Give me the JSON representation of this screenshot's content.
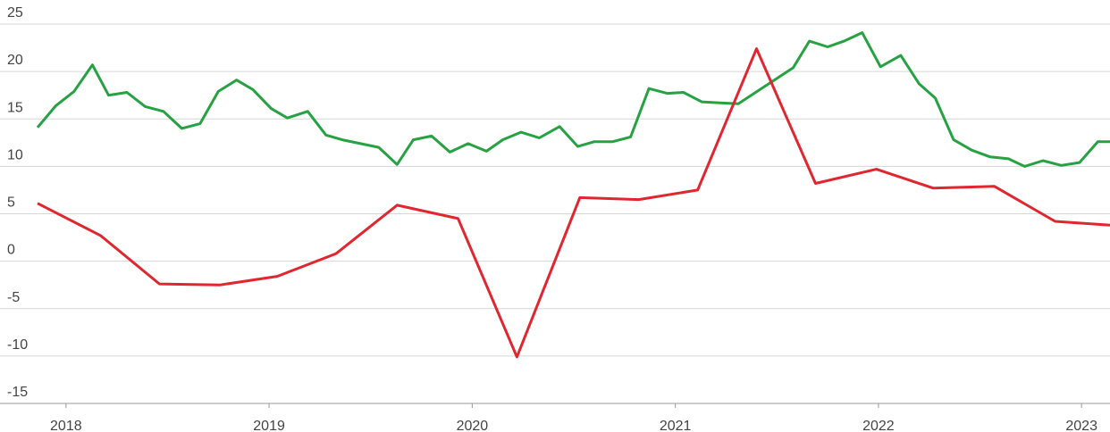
{
  "chart_data": {
    "type": "line",
    "xlim": [
      2017.86,
      2023.14
    ],
    "xticks": [
      2018,
      2019,
      2020,
      2021,
      2022,
      2023
    ],
    "ylim": [
      -15,
      25
    ],
    "yticks": [
      -15,
      -10,
      -5,
      0,
      5,
      10,
      15,
      20,
      25
    ],
    "grid": true,
    "series": [
      {
        "color": "#27a243",
        "x": [
          2017.86,
          2017.95,
          2018.04,
          2018.13,
          2018.21,
          2018.3,
          2018.39,
          2018.48,
          2018.57,
          2018.66,
          2018.75,
          2018.84,
          2018.92,
          2019.01,
          2019.09,
          2019.19,
          2019.28,
          2019.36,
          2019.45,
          2019.54,
          2019.63,
          2019.71,
          2019.8,
          2019.89,
          2019.98,
          2020.07,
          2020.15,
          2020.24,
          2020.33,
          2020.43,
          2020.52,
          2020.6,
          2020.69,
          2020.78,
          2020.87,
          2020.96,
          2021.04,
          2021.13,
          2021.22,
          2021.31,
          2021.58,
          2021.66,
          2021.75,
          2021.83,
          2021.92,
          2022.01,
          2022.11,
          2022.2,
          2022.28,
          2022.37,
          2022.46,
          2022.55,
          2022.64,
          2022.72,
          2022.81,
          2022.9,
          2022.99,
          2023.08,
          2023.14
        ],
        "values": [
          14.1,
          16.4,
          17.9,
          20.7,
          17.5,
          17.8,
          16.3,
          15.8,
          14.0,
          14.5,
          17.9,
          19.1,
          18.1,
          16.1,
          15.1,
          15.8,
          13.3,
          12.8,
          12.4,
          12.0,
          10.2,
          12.8,
          13.2,
          11.5,
          12.4,
          11.6,
          12.8,
          13.6,
          13.0,
          14.2,
          12.1,
          12.6,
          12.6,
          13.1,
          18.2,
          17.7,
          17.8,
          16.8,
          16.7,
          16.6,
          20.4,
          23.2,
          22.6,
          23.2,
          24.1,
          20.5,
          21.7,
          18.7,
          17.2,
          12.8,
          11.7,
          11.0,
          10.8,
          10.0,
          10.6,
          10.1,
          10.4,
          12.6,
          12.6
        ]
      },
      {
        "color": "#e0262f",
        "x": [
          2017.86,
          2018.17,
          2018.46,
          2018.76,
          2019.04,
          2019.33,
          2019.63,
          2019.93,
          2020.22,
          2020.53,
          2020.82,
          2021.11,
          2021.4,
          2021.69,
          2021.99,
          2022.27,
          2022.57,
          2022.87,
          2023.14
        ],
        "values": [
          6.1,
          2.7,
          -2.4,
          -2.5,
          -1.6,
          0.8,
          5.9,
          4.5,
          -10.1,
          6.7,
          6.5,
          7.5,
          22.4,
          8.2,
          9.7,
          7.7,
          7.9,
          4.2,
          3.8
        ]
      }
    ]
  }
}
